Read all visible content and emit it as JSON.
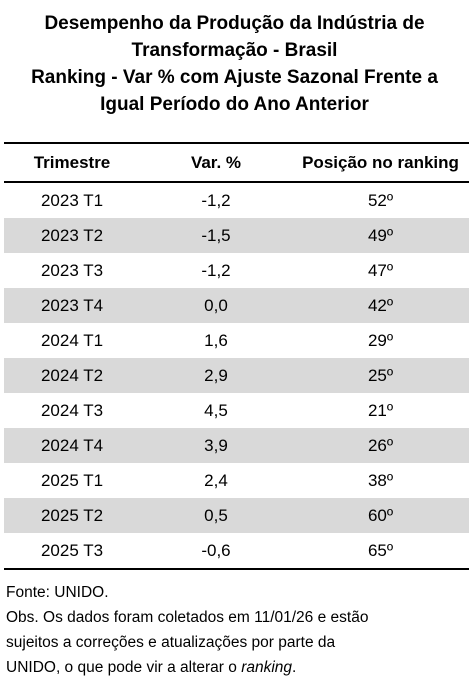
{
  "chart_data": {
    "type": "table",
    "title_lines": [
      "Desempenho da Produção da Indústria de",
      "Transformação - Brasil",
      "Ranking - Var % com Ajuste Sazonal Frente a",
      "Igual Período do Ano Anterior"
    ],
    "columns": [
      "Trimestre",
      "Var. %",
      "Posição no ranking"
    ],
    "rows": [
      {
        "trimestre": "2023 T1",
        "var": "-1,2",
        "posicao": "52º"
      },
      {
        "trimestre": "2023 T2",
        "var": "-1,5",
        "posicao": "49º"
      },
      {
        "trimestre": "2023 T3",
        "var": "-1,2",
        "posicao": "47º"
      },
      {
        "trimestre": "2023 T4",
        "var": "0,0",
        "posicao": "42º"
      },
      {
        "trimestre": "2024 T1",
        "var": "1,6",
        "posicao": "29º"
      },
      {
        "trimestre": "2024 T2",
        "var": "2,9",
        "posicao": "25º"
      },
      {
        "trimestre": "2024 T3",
        "var": "4,5",
        "posicao": "21º"
      },
      {
        "trimestre": "2024 T4",
        "var": "3,9",
        "posicao": "26º"
      },
      {
        "trimestre": "2025 T1",
        "var": "2,4",
        "posicao": "38º"
      },
      {
        "trimestre": "2025 T2",
        "var": "0,5",
        "posicao": "60º"
      },
      {
        "trimestre": "2025 T3",
        "var": "-0,6",
        "posicao": "65º"
      }
    ]
  },
  "notes": {
    "source": "Fonte: UNIDO.",
    "obs_line1": "Obs. Os dados foram coletados em 11/01/26 e estão",
    "obs_line2": "sujeitos a correções e atualizações por parte da",
    "obs_line3_before": "UNIDO, o que pode vir a alterar o ",
    "obs_line3_emph": "ranking",
    "obs_line3_after": "."
  },
  "colors": {
    "stripe": "#d9d9d9",
    "rule": "#000000"
  }
}
